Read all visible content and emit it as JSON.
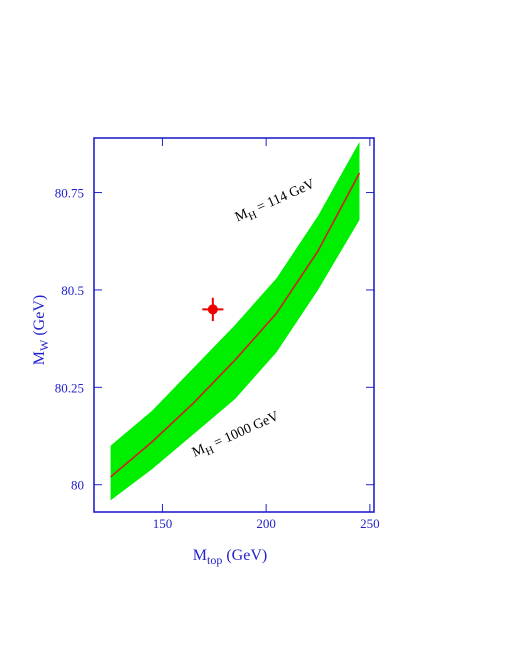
{
  "chart_data": {
    "type": "area",
    "xlabel": {
      "main": "M",
      "sub": "top",
      "unit": " (GeV)"
    },
    "ylabel": {
      "main": "M",
      "sub": "W",
      "unit": " (GeV)"
    },
    "xlim": [
      117,
      252
    ],
    "ylim": [
      79.93,
      80.89
    ],
    "xticks": [
      150,
      200,
      250
    ],
    "xtick_labels": [
      "150",
      "200",
      "250"
    ],
    "yticks": [
      80,
      80.25,
      80.5,
      80.75
    ],
    "ytick_labels": [
      "80",
      "80.25",
      "80.5",
      "80.75"
    ],
    "grid": false,
    "band": {
      "x": [
        125,
        145,
        165,
        185,
        205,
        225,
        245
      ],
      "upper": [
        80.1,
        80.19,
        80.3,
        80.41,
        80.53,
        80.69,
        80.88
      ],
      "lower": [
        79.96,
        80.04,
        80.13,
        80.22,
        80.34,
        80.5,
        80.68
      ],
      "color": "#00ee00"
    },
    "central_line": {
      "x": [
        125,
        145,
        165,
        185,
        205,
        225,
        245
      ],
      "y": [
        80.02,
        80.11,
        80.21,
        80.32,
        80.44,
        80.6,
        80.8
      ],
      "color": "#cc2222"
    },
    "data_point": {
      "x": 174.3,
      "y": 80.45,
      "xerr": 5.1,
      "yerr": 0.03,
      "color": "#ee0000"
    },
    "annotations": [
      {
        "main": "M",
        "sub": "H",
        "rest": " = 114 GeV",
        "at_x": 205,
        "at_y": 80.72,
        "rotation": -24
      },
      {
        "main": "M",
        "sub": "H",
        "rest": " = 1000 GeV",
        "at_x": 186,
        "at_y": 80.12,
        "rotation": -24
      }
    ],
    "colors": {
      "frame": "#2222cc",
      "text": "#2222cc"
    }
  }
}
